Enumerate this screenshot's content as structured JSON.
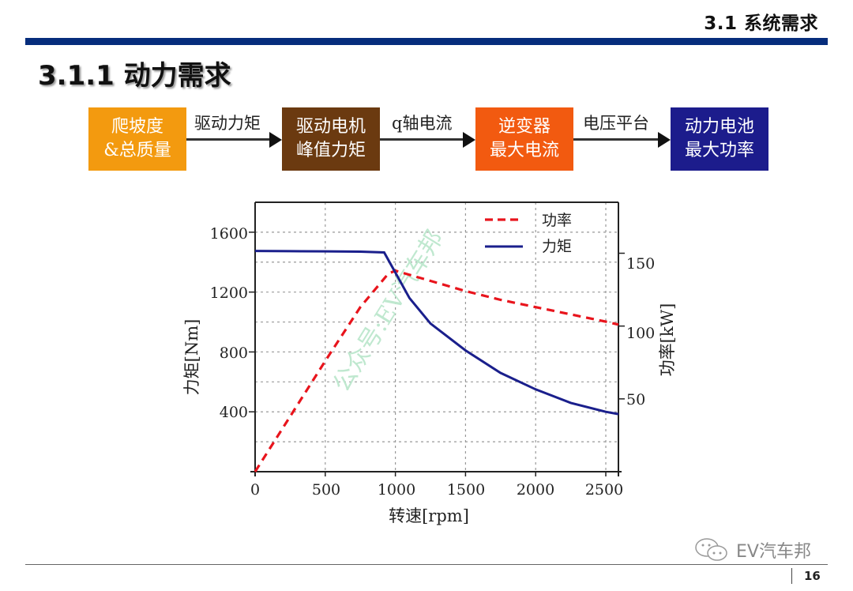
{
  "header": {
    "section_title": "3.1 系统需求",
    "page_title": "3.1.1 动力需求",
    "bar_color": "#062d7c"
  },
  "flow": {
    "boxes": [
      {
        "line1": "爬坡度",
        "line2": "&总质量",
        "color": "#f39a0f"
      },
      {
        "line1": "驱动电机",
        "line2": "峰值力矩",
        "color": "#6b3a10"
      },
      {
        "line1": "逆变器",
        "line2": "最大电流",
        "color": "#f25a10"
      },
      {
        "line1": "动力电池",
        "line2": "最大功率",
        "color": "#1c1c8c"
      }
    ],
    "arrows": [
      {
        "label": "驱动力矩"
      },
      {
        "label": "q轴电流"
      },
      {
        "label": "电压平台"
      }
    ]
  },
  "chart_data": {
    "type": "line",
    "title": "",
    "xlabel": "转速[rpm]",
    "ylabel": "力矩[Nm]",
    "y2label": "功率[kW]",
    "xlim": [
      0,
      2590
    ],
    "ylim": [
      0,
      1800
    ],
    "y2lim": [
      0,
      185
    ],
    "x_ticks": [
      0,
      500,
      1000,
      1500,
      2000,
      2500
    ],
    "y_ticks": [
      400,
      800,
      1200,
      1600
    ],
    "y2_ticks": [
      50,
      100,
      150
    ],
    "grid": true,
    "legend_position": "upper right",
    "legend": [
      "功率",
      "力矩"
    ],
    "series": [
      {
        "name": "功率",
        "axis": "right",
        "style": "dashed",
        "color": "#e8141c",
        "x": [
          0,
          250,
          500,
          750,
          950,
          1000,
          1250,
          1500,
          1750,
          2000,
          2250,
          2500,
          2590
        ],
        "values": [
          0,
          38,
          76,
          113,
          136,
          138,
          131,
          124,
          118,
          113,
          108,
          103,
          101
        ]
      },
      {
        "name": "力矩",
        "axis": "left",
        "style": "solid",
        "color": "#1a1f8c",
        "x": [
          0,
          250,
          500,
          750,
          920,
          1000,
          1100,
          1250,
          1500,
          1750,
          2000,
          2250,
          2500,
          2590
        ],
        "values": [
          1475,
          1473,
          1472,
          1470,
          1465,
          1330,
          1160,
          990,
          810,
          660,
          550,
          460,
          400,
          385
        ]
      }
    ]
  },
  "chart_labels": {
    "x_ticks": [
      "0",
      "500",
      "1000",
      "1500",
      "2000",
      "2500"
    ],
    "y_ticks": [
      "400",
      "800",
      "1200",
      "1600"
    ],
    "y2_ticks": [
      "50",
      "100",
      "150"
    ],
    "xlabel": "转速[rpm]",
    "ylabel": "力矩[Nm]",
    "y2label": "功率[kW]",
    "legend_power": "功率",
    "legend_torque": "力矩",
    "watermark": "公众号:EV汽车邦"
  },
  "footer": {
    "brand": "EV汽车邦",
    "page_number": "16"
  }
}
